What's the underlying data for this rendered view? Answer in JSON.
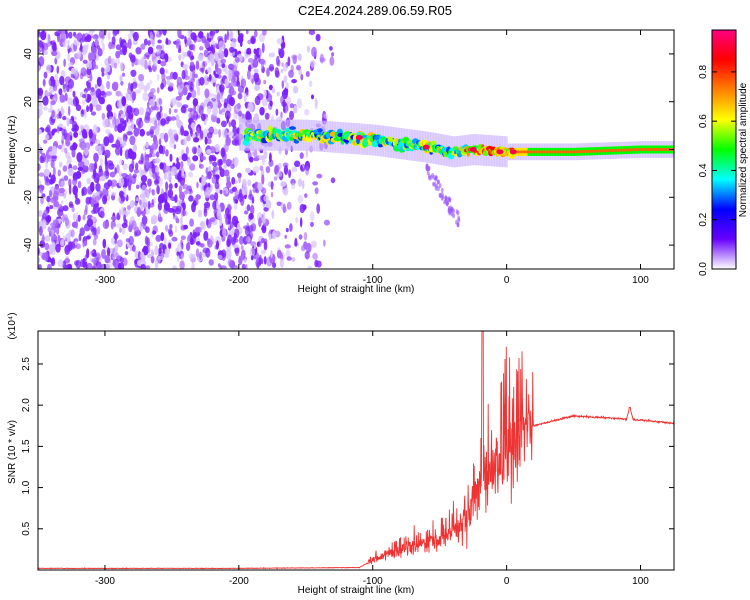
{
  "figure": {
    "title": "C2E4.2024.289.06.59.R05"
  },
  "chart_data": [
    {
      "type": "heatmap",
      "xlabel": "Height of straight line (km)",
      "ylabel": "Frequency (Hz)",
      "xlim": [
        -350,
        125
      ],
      "ylim": [
        -50,
        50
      ],
      "xticks": [
        -300,
        -200,
        -100,
        0,
        100
      ],
      "xtick_labels": [
        "-300",
        "-200",
        "-100",
        "0",
        "100"
      ],
      "yticks": [
        -40,
        -20,
        0,
        20,
        40
      ],
      "ytick_labels": [
        "-40",
        "-20",
        "0",
        "20",
        "40"
      ],
      "colorbar": {
        "label": "Normalized spectral amplitude",
        "range": [
          0,
          0.97
        ],
        "ticks": [
          0.0,
          0.2,
          0.4,
          0.6,
          0.8
        ],
        "tick_labels": [
          "0.0",
          "0.2",
          "0.4",
          "0.6",
          "0.8"
        ],
        "colormap": [
          "#ffffff",
          "#6600ff",
          "#0000ff",
          "#00ffff",
          "#00ff00",
          "#ffff00",
          "#ff8000",
          "#ff0000",
          "#ff0080"
        ]
      },
      "signal_track": [
        {
          "x": -195,
          "y": 6
        },
        {
          "x": -150,
          "y": 6
        },
        {
          "x": -100,
          "y": 4
        },
        {
          "x": -60,
          "y": 1
        },
        {
          "x": -40,
          "y": -1
        },
        {
          "x": -25,
          "y": 0
        },
        {
          "x": 0,
          "y": -1
        },
        {
          "x": 50,
          "y": -1
        },
        {
          "x": 100,
          "y": 0
        },
        {
          "x": 125,
          "y": 0
        }
      ]
    },
    {
      "type": "line",
      "xlabel": "Height of straight line (km)",
      "ylabel": "SNR (10 * v/v)",
      "y_multiplier": "(x10⁴)",
      "xlim": [
        -350,
        125
      ],
      "ylim": [
        0,
        2.9
      ],
      "xticks": [
        -300,
        -200,
        -100,
        0,
        100
      ],
      "xtick_labels": [
        "-300",
        "-200",
        "-100",
        "0",
        "100"
      ],
      "yticks": [
        0.5,
        1.0,
        1.5,
        2.0,
        2.5
      ],
      "ytick_labels": [
        "0.5",
        "1.0",
        "1.5",
        "2.0",
        "2.5"
      ],
      "line_color": "#ee3333",
      "series_trend": [
        {
          "x": -350,
          "y": 0.02
        },
        {
          "x": -200,
          "y": 0.02
        },
        {
          "x": -110,
          "y": 0.03
        },
        {
          "x": -100,
          "y": 0.12
        },
        {
          "x": -80,
          "y": 0.25
        },
        {
          "x": -50,
          "y": 0.35
        },
        {
          "x": -30,
          "y": 0.6
        },
        {
          "x": -20,
          "y": 1.0
        },
        {
          "x": -10,
          "y": 1.2
        },
        {
          "x": 0,
          "y": 1.4
        },
        {
          "x": 20,
          "y": 1.75
        },
        {
          "x": 50,
          "y": 1.87
        },
        {
          "x": 100,
          "y": 1.82
        },
        {
          "x": 125,
          "y": 1.78
        }
      ],
      "peaks": [
        {
          "x": -18,
          "y": 2.9
        },
        {
          "x": 92,
          "y": 1.97
        }
      ]
    }
  ]
}
